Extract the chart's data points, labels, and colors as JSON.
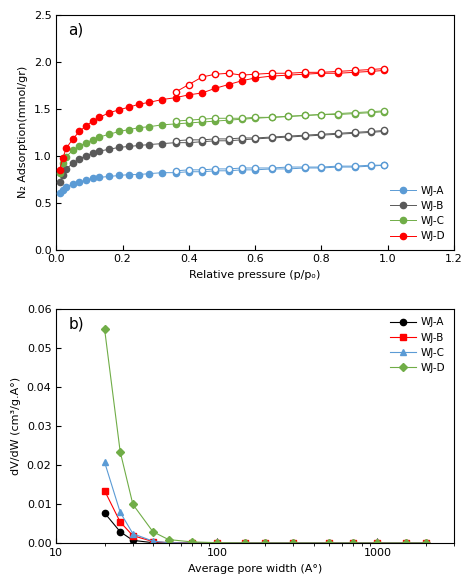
{
  "panel_a": {
    "title": "a)",
    "xlabel": "Relative pressure (p/pₒ)",
    "ylabel": "N₂ Adsorption(mmol/gr)",
    "xlim": [
      0,
      1.2
    ],
    "ylim": [
      0,
      2.5
    ],
    "xticks": [
      0,
      0.2,
      0.4,
      0.6,
      0.8,
      1.0,
      1.2
    ],
    "yticks": [
      0,
      0.5,
      1.0,
      1.5,
      2.0,
      2.5
    ],
    "series": {
      "WJ-A": {
        "color": "#5B9BD5",
        "adsorption_x": [
          0.01,
          0.02,
          0.03,
          0.05,
          0.07,
          0.09,
          0.11,
          0.13,
          0.16,
          0.19,
          0.22,
          0.25,
          0.28,
          0.32,
          0.36,
          0.4,
          0.44,
          0.48,
          0.52,
          0.56,
          0.6,
          0.65,
          0.7,
          0.75,
          0.8,
          0.85,
          0.9,
          0.95,
          0.99
        ],
        "adsorption_y": [
          0.6,
          0.64,
          0.67,
          0.7,
          0.72,
          0.74,
          0.76,
          0.77,
          0.78,
          0.79,
          0.8,
          0.8,
          0.81,
          0.82,
          0.82,
          0.83,
          0.83,
          0.84,
          0.84,
          0.85,
          0.85,
          0.86,
          0.86,
          0.87,
          0.87,
          0.88,
          0.88,
          0.89,
          0.9
        ],
        "desorption_x": [
          0.36,
          0.4,
          0.44,
          0.48,
          0.52,
          0.56,
          0.6,
          0.65,
          0.7,
          0.75,
          0.8,
          0.85,
          0.9,
          0.95,
          0.99
        ],
        "desorption_y": [
          0.84,
          0.85,
          0.85,
          0.86,
          0.86,
          0.87,
          0.87,
          0.87,
          0.88,
          0.88,
          0.88,
          0.89,
          0.89,
          0.9,
          0.9
        ]
      },
      "WJ-B": {
        "color": "#595959",
        "adsorption_x": [
          0.01,
          0.02,
          0.03,
          0.05,
          0.07,
          0.09,
          0.11,
          0.13,
          0.16,
          0.19,
          0.22,
          0.25,
          0.28,
          0.32,
          0.36,
          0.4,
          0.44,
          0.48,
          0.52,
          0.56,
          0.6,
          0.65,
          0.7,
          0.75,
          0.8,
          0.85,
          0.9,
          0.95,
          0.99
        ],
        "adsorption_y": [
          0.72,
          0.8,
          0.86,
          0.92,
          0.97,
          1.0,
          1.03,
          1.05,
          1.07,
          1.09,
          1.1,
          1.11,
          1.12,
          1.13,
          1.14,
          1.14,
          1.15,
          1.16,
          1.16,
          1.17,
          1.18,
          1.19,
          1.2,
          1.21,
          1.22,
          1.23,
          1.24,
          1.25,
          1.26
        ],
        "desorption_x": [
          0.36,
          0.4,
          0.44,
          0.48,
          0.52,
          0.56,
          0.6,
          0.65,
          0.7,
          0.75,
          0.8,
          0.85,
          0.9,
          0.95,
          0.99
        ],
        "desorption_y": [
          1.16,
          1.17,
          1.17,
          1.18,
          1.18,
          1.19,
          1.19,
          1.2,
          1.21,
          1.22,
          1.23,
          1.24,
          1.25,
          1.26,
          1.27
        ]
      },
      "WJ-C": {
        "color": "#70AD47",
        "adsorption_x": [
          0.01,
          0.02,
          0.03,
          0.05,
          0.07,
          0.09,
          0.11,
          0.13,
          0.16,
          0.19,
          0.22,
          0.25,
          0.28,
          0.32,
          0.36,
          0.4,
          0.44,
          0.48,
          0.52,
          0.56,
          0.6,
          0.65,
          0.7,
          0.75,
          0.8,
          0.85,
          0.9,
          0.95,
          0.99
        ],
        "adsorption_y": [
          0.82,
          0.92,
          0.99,
          1.06,
          1.1,
          1.14,
          1.17,
          1.2,
          1.23,
          1.26,
          1.28,
          1.3,
          1.31,
          1.33,
          1.34,
          1.35,
          1.36,
          1.37,
          1.38,
          1.39,
          1.4,
          1.41,
          1.42,
          1.43,
          1.44,
          1.44,
          1.45,
          1.46,
          1.47
        ],
        "desorption_x": [
          0.36,
          0.4,
          0.44,
          0.48,
          0.52,
          0.56,
          0.6,
          0.65,
          0.7,
          0.75,
          0.8,
          0.85,
          0.9,
          0.95,
          0.99
        ],
        "desorption_y": [
          1.37,
          1.38,
          1.39,
          1.4,
          1.4,
          1.4,
          1.41,
          1.41,
          1.42,
          1.43,
          1.44,
          1.45,
          1.46,
          1.47,
          1.48
        ]
      },
      "WJ-D": {
        "color": "#FF0000",
        "adsorption_x": [
          0.01,
          0.02,
          0.03,
          0.05,
          0.07,
          0.09,
          0.11,
          0.13,
          0.16,
          0.19,
          0.22,
          0.25,
          0.28,
          0.32,
          0.36,
          0.4,
          0.44,
          0.48,
          0.52,
          0.56,
          0.6,
          0.65,
          0.7,
          0.75,
          0.8,
          0.85,
          0.9,
          0.95,
          0.99
        ],
        "adsorption_y": [
          0.85,
          0.98,
          1.08,
          1.18,
          1.26,
          1.32,
          1.37,
          1.41,
          1.46,
          1.49,
          1.52,
          1.55,
          1.57,
          1.6,
          1.62,
          1.65,
          1.67,
          1.72,
          1.76,
          1.8,
          1.83,
          1.85,
          1.86,
          1.87,
          1.88,
          1.88,
          1.89,
          1.9,
          1.91
        ],
        "desorption_x": [
          0.36,
          0.4,
          0.44,
          0.48,
          0.52,
          0.56,
          0.6,
          0.65,
          0.7,
          0.75,
          0.8,
          0.85,
          0.9,
          0.95,
          0.99
        ],
        "desorption_y": [
          1.68,
          1.76,
          1.84,
          1.87,
          1.88,
          1.86,
          1.87,
          1.88,
          1.88,
          1.89,
          1.89,
          1.9,
          1.91,
          1.92,
          1.93
        ]
      }
    },
    "legend_order": [
      "WJ-A",
      "WJ-B",
      "WJ-C",
      "WJ-D"
    ]
  },
  "panel_b": {
    "title": "b)",
    "xlabel": "Average pore width (A°)",
    "ylabel": "dV/dW (cm³/g.A°)",
    "xlim": [
      10,
      3000
    ],
    "ylim": [
      0,
      0.06
    ],
    "yticks": [
      0,
      0.01,
      0.02,
      0.03,
      0.04,
      0.05,
      0.06
    ],
    "series": {
      "WJ-A": {
        "color": "#000000",
        "marker": "o",
        "x": [
          20,
          25,
          30,
          40,
          50,
          70,
          100,
          150,
          200,
          300,
          500,
          700,
          1000,
          1500,
          2000
        ],
        "y": [
          0.0078,
          0.003,
          0.0008,
          0.0002,
          0.0001,
          0.0001,
          0.0001,
          0.0001,
          0.0001,
          0.0001,
          0.0001,
          0.0001,
          0.0001,
          0.0001,
          0.0001
        ]
      },
      "WJ-B": {
        "color": "#FF0000",
        "marker": "s",
        "x": [
          20,
          25,
          30,
          40,
          50,
          70,
          100,
          150,
          200,
          300,
          500,
          700,
          1000,
          1500,
          2000
        ],
        "y": [
          0.0135,
          0.0055,
          0.002,
          0.0005,
          0.0002,
          0.0001,
          0.0001,
          0.0001,
          0.0001,
          0.0001,
          0.0001,
          0.0001,
          0.0001,
          0.0001,
          0.0001
        ]
      },
      "WJ-C": {
        "color": "#5B9BD5",
        "marker": "^",
        "x": [
          20,
          25,
          30,
          40,
          50,
          70,
          100,
          150,
          200,
          300,
          500,
          700,
          1000,
          1500,
          2000
        ],
        "y": [
          0.0208,
          0.008,
          0.0025,
          0.0006,
          0.0002,
          0.0001,
          0.0001,
          0.0001,
          0.0001,
          0.0001,
          0.0001,
          0.0001,
          0.0001,
          0.0001,
          0.0001
        ]
      },
      "WJ-D": {
        "color": "#70AD47",
        "marker": "D",
        "x": [
          20,
          25,
          30,
          40,
          50,
          70,
          100,
          150,
          200,
          300,
          500,
          700,
          1000,
          1500,
          2000
        ],
        "y": [
          0.0548,
          0.0235,
          0.01,
          0.003,
          0.001,
          0.0004,
          0.0002,
          0.0001,
          0.0001,
          0.0001,
          0.0001,
          0.0001,
          0.0001,
          0.0001,
          0.0001
        ]
      }
    },
    "legend_order": [
      "WJ-A",
      "WJ-B",
      "WJ-C",
      "WJ-D"
    ]
  }
}
